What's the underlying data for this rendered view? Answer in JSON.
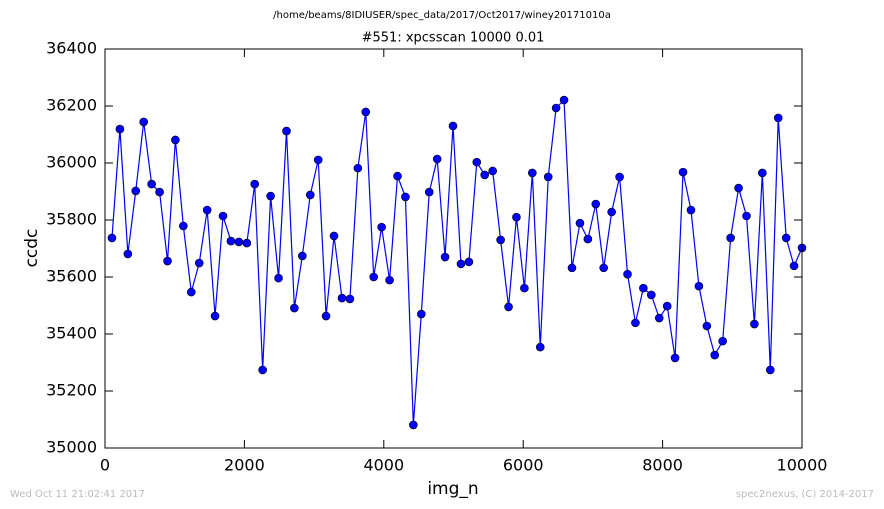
{
  "chart_data": {
    "type": "line",
    "suptitle": "/home/beams/8IDIUSER/spec_data/2017/Oct2017/winey20171010a",
    "title": "#551: xpcsscan 10000 0.01",
    "x_label": "img_n",
    "y_label": "ccdc",
    "annotations": [
      "Wed Oct 11 21:02:41 2017",
      "spec2nexus, (C) 2014-2017"
    ],
    "xlim": [
      0,
      10000
    ],
    "xticks": [
      0,
      2000,
      4000,
      6000,
      8000,
      10000
    ],
    "ylim": [
      35000,
      36400
    ],
    "yticks": [
      35000,
      35200,
      35400,
      35600,
      35800,
      36000,
      36200,
      36400
    ],
    "grid": false,
    "series": [
      {
        "color": "#0000ff",
        "marker": "circle",
        "x": [
          100,
          214,
          328,
          441,
          555,
          669,
          783,
          897,
          1010,
          1124,
          1238,
          1352,
          1466,
          1579,
          1693,
          1807,
          1921,
          2035,
          2148,
          2262,
          2376,
          2490,
          2604,
          2717,
          2831,
          2945,
          3059,
          3172,
          3286,
          3400,
          3514,
          3628,
          3741,
          3855,
          3969,
          4083,
          4197,
          4310,
          4424,
          4538,
          4652,
          4766,
          4879,
          4993,
          5107,
          5221,
          5334,
          5448,
          5562,
          5676,
          5790,
          5903,
          6017,
          6131,
          6245,
          6359,
          6472,
          6586,
          6700,
          6814,
          6928,
          7041,
          7155,
          7269,
          7383,
          7497,
          7610,
          7724,
          7838,
          7952,
          8066,
          8179,
          8293,
          8407,
          8521,
          8635,
          8748,
          8862,
          8976,
          9090,
          9204,
          9317,
          9431,
          9545,
          9659,
          9773,
          9886,
          10000
        ],
        "values": [
          35737,
          36119,
          35681,
          35902,
          36144,
          35926,
          35898,
          35656,
          36081,
          35779,
          35547,
          35649,
          35835,
          35463,
          35814,
          35726,
          35723,
          35719,
          35926,
          35274,
          35884,
          35596,
          36112,
          35491,
          35674,
          35888,
          36011,
          35463,
          35744,
          35526,
          35523,
          35982,
          36179,
          35600,
          35775,
          35589,
          35954,
          35881,
          35081,
          35470,
          35898,
          36014,
          35670,
          36130,
          35646,
          35653,
          36003,
          35958,
          35972,
          35730,
          35495,
          35810,
          35561,
          35965,
          35354,
          35951,
          36193,
          36221,
          35632,
          35789,
          35733,
          35856,
          35632,
          35828,
          35951,
          35610,
          35439,
          35561,
          35537,
          35456,
          35498,
          35316,
          35968,
          35835,
          35568,
          35428,
          35326,
          35375,
          35737,
          35912,
          35814,
          35435,
          35965,
          35274,
          36158,
          35737,
          35639,
          35702
        ]
      }
    ]
  }
}
